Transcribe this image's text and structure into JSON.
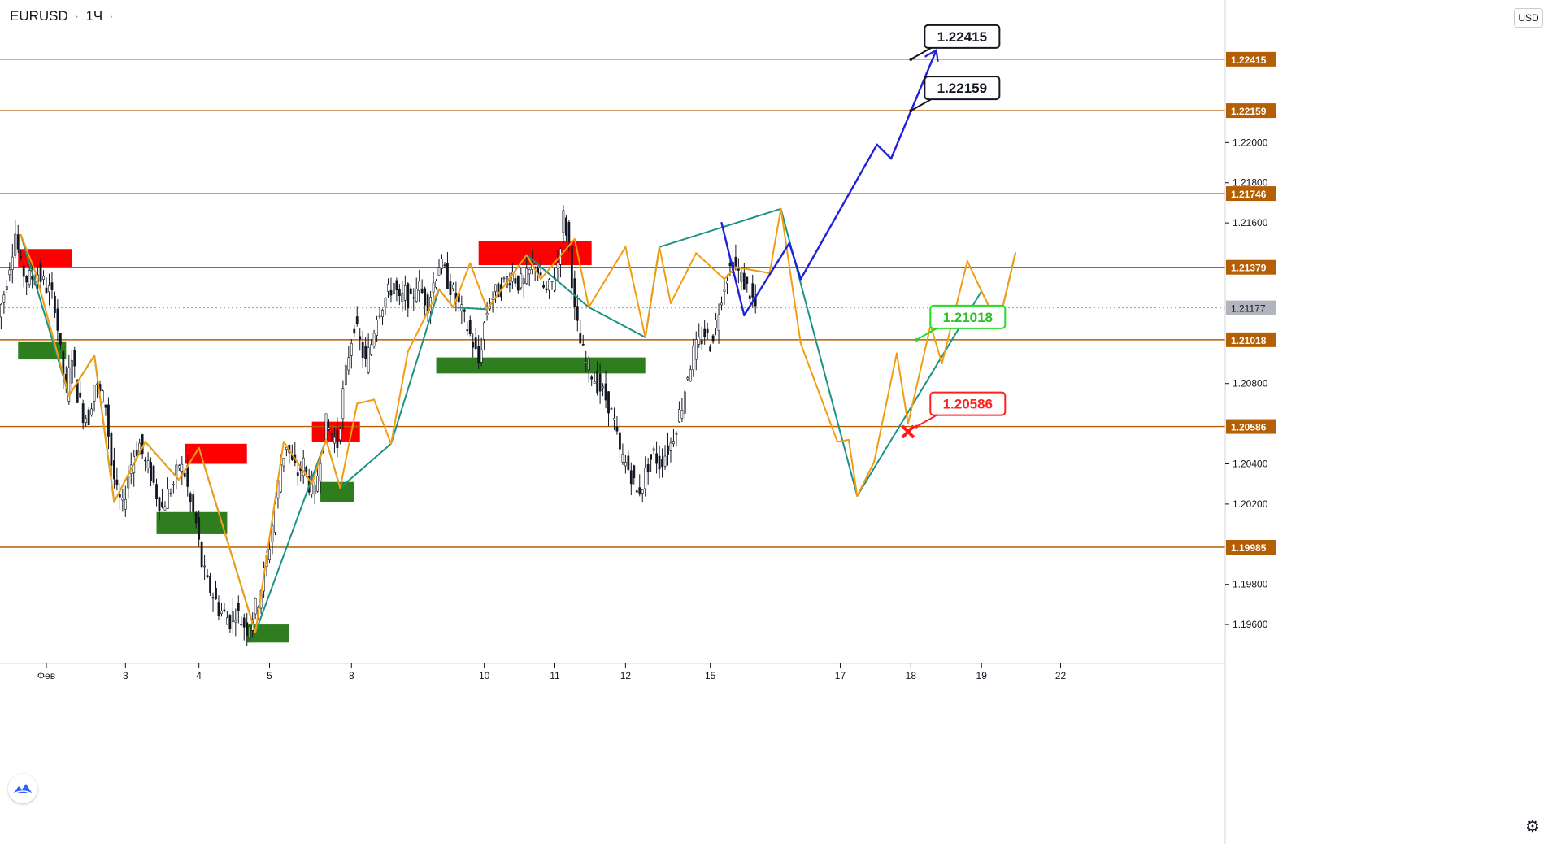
{
  "header": {
    "symbol": "EURUSD",
    "interval": "1Ч",
    "sep": "·"
  },
  "currency_button": "USD",
  "chart_data": {
    "type": "line",
    "title": "EURUSD · 1Ч",
    "ylabel": "USD",
    "ylim": [
      1.1941,
      1.2271
    ],
    "y_ticks": [
      1.196,
      1.198,
      1.202,
      1.204,
      1.208,
      1.216,
      1.218,
      1.22
    ],
    "x_ticks": [
      {
        "label": "Фев",
        "i": 0
      },
      {
        "label": "3",
        "i": 28
      },
      {
        "label": "4",
        "i": 54
      },
      {
        "label": "5",
        "i": 79
      },
      {
        "label": "8",
        "i": 108
      },
      {
        "label": "10",
        "i": 155
      },
      {
        "label": "11",
        "i": 180
      },
      {
        "label": "12",
        "i": 205
      },
      {
        "label": "15",
        "i": 235
      },
      {
        "label": "17",
        "i": 281
      },
      {
        "label": "18",
        "i": 306
      },
      {
        "label": "19",
        "i": 331
      },
      {
        "label": "22",
        "i": 359
      }
    ],
    "levels": [
      {
        "value": 1.22415,
        "label": "1.22415"
      },
      {
        "value": 1.22159,
        "label": "1.22159"
      },
      {
        "value": 1.21746,
        "label": "1.21746"
      },
      {
        "value": 1.21379,
        "label": "1.21379"
      },
      {
        "value": 1.21018,
        "label": "1.21018"
      },
      {
        "value": 1.20586,
        "label": "1.20586"
      },
      {
        "value": 1.19985,
        "label": "1.19985"
      }
    ],
    "current_price": {
      "value": 1.21177,
      "label": "1.21177"
    },
    "callouts": [
      {
        "label": "1.22415",
        "value": 1.22415,
        "i": 306,
        "style": "black"
      },
      {
        "label": "1.22159",
        "value": 1.22159,
        "i": 306,
        "style": "black"
      },
      {
        "label": "1.21018",
        "value": 1.21018,
        "i": 308,
        "style": "green"
      },
      {
        "label": "1.20586",
        "value": 1.20586,
        "i": 308,
        "style": "red"
      }
    ],
    "series": [
      {
        "type": "price",
        "points": [
          [
            -17,
            1.2108
          ],
          [
            -14,
            1.2125
          ],
          [
            -12,
            1.214
          ],
          [
            -10,
            1.2155
          ],
          [
            -8,
            1.2138
          ],
          [
            -6,
            1.2132
          ],
          [
            -4,
            1.2133
          ],
          [
            -2,
            1.2135
          ],
          [
            0,
            1.213
          ],
          [
            2,
            1.2126
          ],
          [
            4,
            1.212
          ],
          [
            6,
            1.2095
          ],
          [
            8,
            1.2075
          ],
          [
            10,
            1.2095
          ],
          [
            12,
            1.2075
          ],
          [
            14,
            1.2065
          ],
          [
            16,
            1.2063
          ],
          [
            18,
            1.208
          ],
          [
            20,
            1.2075
          ],
          [
            22,
            1.207
          ],
          [
            24,
            1.204
          ],
          [
            26,
            1.2025
          ],
          [
            28,
            1.2018
          ],
          [
            30,
            1.2035
          ],
          [
            32,
            1.2045
          ],
          [
            34,
            1.205
          ],
          [
            36,
            1.204
          ],
          [
            38,
            1.2035
          ],
          [
            40,
            1.2025
          ],
          [
            42,
            1.2018
          ],
          [
            44,
            1.2025
          ],
          [
            46,
            1.203
          ],
          [
            48,
            1.204
          ],
          [
            50,
            1.2035
          ],
          [
            52,
            1.202
          ],
          [
            54,
            1.201
          ],
          [
            56,
            1.199
          ],
          [
            58,
            1.198
          ],
          [
            60,
            1.1975
          ],
          [
            62,
            1.1968
          ],
          [
            64,
            1.1965
          ],
          [
            66,
            1.1962
          ],
          [
            68,
            1.1967
          ],
          [
            70,
            1.1962
          ],
          [
            72,
            1.1958
          ],
          [
            74,
            1.1965
          ],
          [
            76,
            1.1972
          ],
          [
            78,
            1.1985
          ],
          [
            80,
            1.2
          ],
          [
            82,
            1.202
          ],
          [
            84,
            1.204
          ],
          [
            86,
            1.205
          ],
          [
            88,
            1.204
          ],
          [
            90,
            1.2035
          ],
          [
            92,
            1.204
          ],
          [
            94,
            1.203
          ],
          [
            96,
            1.2025
          ],
          [
            98,
            1.2045
          ],
          [
            100,
            1.206
          ],
          [
            102,
            1.2055
          ],
          [
            104,
            1.205
          ],
          [
            106,
            1.2075
          ],
          [
            108,
            1.2095
          ],
          [
            110,
            1.211
          ],
          [
            112,
            1.21
          ],
          [
            114,
            1.209
          ],
          [
            116,
            1.21
          ],
          [
            118,
            1.2115
          ],
          [
            120,
            1.212
          ],
          [
            122,
            1.2125
          ],
          [
            124,
            1.213
          ],
          [
            126,
            1.212
          ],
          [
            128,
            1.2125
          ],
          [
            130,
            1.212
          ],
          [
            132,
            1.213
          ],
          [
            134,
            1.2125
          ],
          [
            136,
            1.212
          ],
          [
            138,
            1.213
          ],
          [
            140,
            1.214
          ],
          [
            142,
            1.2135
          ],
          [
            144,
            1.2128
          ],
          [
            146,
            1.2122
          ],
          [
            148,
            1.2115
          ],
          [
            150,
            1.2108
          ],
          [
            152,
            1.21
          ],
          [
            154,
            1.209
          ],
          [
            156,
            1.211
          ],
          [
            158,
            1.2122
          ],
          [
            160,
            1.2125
          ],
          [
            162,
            1.2128
          ],
          [
            164,
            1.2132
          ],
          [
            166,
            1.2135
          ],
          [
            168,
            1.213
          ],
          [
            170,
            1.213
          ],
          [
            172,
            1.2135
          ],
          [
            174,
            1.214
          ],
          [
            176,
            1.213
          ],
          [
            178,
            1.2125
          ],
          [
            180,
            1.213
          ],
          [
            182,
            1.214
          ],
          [
            184,
            1.2163
          ],
          [
            186,
            1.215
          ],
          [
            188,
            1.2115
          ],
          [
            190,
            1.21
          ],
          [
            192,
            1.209
          ],
          [
            194,
            1.2085
          ],
          [
            196,
            1.208
          ],
          [
            198,
            1.2075
          ],
          [
            200,
            1.207
          ],
          [
            202,
            1.206
          ],
          [
            204,
            1.2045
          ],
          [
            206,
            1.204
          ],
          [
            208,
            1.2035
          ],
          [
            210,
            1.2025
          ],
          [
            212,
            1.203
          ],
          [
            214,
            1.204
          ],
          [
            216,
            1.2045
          ],
          [
            218,
            1.204
          ],
          [
            220,
            1.2045
          ],
          [
            222,
            1.205
          ],
          [
            224,
            1.206
          ],
          [
            226,
            1.207
          ],
          [
            228,
            1.2085
          ],
          [
            230,
            1.2095
          ],
          [
            232,
            1.21
          ],
          [
            234,
            1.2105
          ],
          [
            236,
            1.21
          ],
          [
            238,
            1.211
          ],
          [
            240,
            1.2125
          ],
          [
            242,
            1.2135
          ],
          [
            244,
            1.214
          ],
          [
            246,
            1.2135
          ],
          [
            248,
            1.213
          ],
          [
            250,
            1.2125
          ],
          [
            252,
            1.2118
          ]
        ]
      }
    ],
    "zigzag_orange": [
      [
        -9,
        1.2154
      ],
      [
        -4,
        1.2136
      ],
      [
        8,
        1.2074
      ],
      [
        17,
        1.2094
      ],
      [
        24,
        1.2021
      ],
      [
        35,
        1.2051
      ],
      [
        47,
        1.2032
      ],
      [
        54,
        1.2048
      ],
      [
        74,
        1.1956
      ],
      [
        84,
        1.2051
      ],
      [
        94,
        1.203
      ],
      [
        99,
        1.2052
      ],
      [
        104,
        1.2028
      ],
      [
        110,
        1.207
      ],
      [
        116,
        1.2072
      ],
      [
        122,
        1.205
      ],
      [
        128,
        1.2096
      ],
      [
        139,
        1.2127
      ],
      [
        144,
        1.2118
      ],
      [
        150,
        1.214
      ],
      [
        156,
        1.2117
      ],
      [
        170,
        1.2144
      ],
      [
        175,
        1.2132
      ],
      [
        181,
        1.2142
      ],
      [
        187,
        1.2152
      ],
      [
        192,
        1.2118
      ],
      [
        205,
        1.2148
      ],
      [
        212,
        1.2103
      ],
      [
        217,
        1.2148
      ],
      [
        221,
        1.212
      ],
      [
        230,
        1.2145
      ],
      [
        240,
        1.2132
      ],
      [
        244,
        1.2138
      ],
      [
        256,
        1.2135
      ],
      [
        260,
        1.2167
      ],
      [
        267,
        1.21
      ],
      [
        280,
        1.2051
      ],
      [
        284,
        1.2052
      ],
      [
        287,
        1.2024
      ],
      [
        293,
        1.2041
      ],
      [
        301,
        1.2095
      ],
      [
        305,
        1.206
      ],
      [
        313,
        1.2109
      ],
      [
        317,
        1.209
      ],
      [
        326,
        1.2141
      ],
      [
        331,
        1.2126
      ],
      [
        337,
        1.2109
      ],
      [
        343,
        1.2145
      ]
    ],
    "zigzag_teal": [
      [
        -9,
        1.2154
      ],
      [
        8,
        1.2074
      ],
      [
        17,
        1.2094
      ],
      [
        24,
        1.2021
      ],
      [
        35,
        1.2051
      ],
      [
        47,
        1.2032
      ],
      [
        54,
        1.2048
      ],
      [
        74,
        1.1956
      ],
      [
        99,
        1.2052
      ],
      [
        104,
        1.2028
      ],
      [
        122,
        1.205
      ],
      [
        139,
        1.2127
      ],
      [
        144,
        1.2118
      ],
      [
        156,
        1.2117
      ],
      [
        170,
        1.2144
      ],
      [
        192,
        1.2118
      ],
      [
        212,
        1.2103
      ],
      [
        217,
        1.2148
      ],
      [
        260,
        1.2167
      ],
      [
        287,
        1.2024
      ],
      [
        331,
        1.2126
      ],
      [
        337,
        1.2109
      ],
      [
        343,
        1.2145
      ]
    ],
    "projection_blue": [
      [
        239,
        1.216
      ],
      [
        247,
        1.2114
      ],
      [
        263,
        1.215
      ],
      [
        267,
        1.2132
      ],
      [
        294,
        1.2199
      ],
      [
        299,
        1.2192
      ],
      [
        315,
        1.2246
      ]
    ],
    "zones": [
      {
        "color": "red",
        "i1": -10,
        "i2": 9,
        "y1": 1.2147,
        "y2": 1.2138
      },
      {
        "color": "green",
        "i1": -10,
        "i2": 7,
        "y1": 1.2101,
        "y2": 1.2092
      },
      {
        "color": "red",
        "i1": 49,
        "i2": 71,
        "y1": 1.205,
        "y2": 1.204
      },
      {
        "color": "green",
        "i1": 39,
        "i2": 64,
        "y1": 1.2016,
        "y2": 1.2005
      },
      {
        "color": "red",
        "i1": 94,
        "i2": 111,
        "y1": 1.2061,
        "y2": 1.2051
      },
      {
        "color": "green",
        "i1": 97,
        "i2": 109,
        "y1": 1.2031,
        "y2": 1.2021
      },
      {
        "color": "red",
        "i1": 153,
        "i2": 193,
        "y1": 1.2151,
        "y2": 1.2139
      },
      {
        "color": "green",
        "i1": 138,
        "i2": 212,
        "y1": 1.2093,
        "y2": 1.2085
      },
      {
        "color": "green",
        "i1": 71,
        "i2": 86,
        "y1": 1.196,
        "y2": 1.1951
      }
    ],
    "marker_x": {
      "i": 305,
      "value": 1.2056
    },
    "grid": false,
    "legend": "none"
  }
}
